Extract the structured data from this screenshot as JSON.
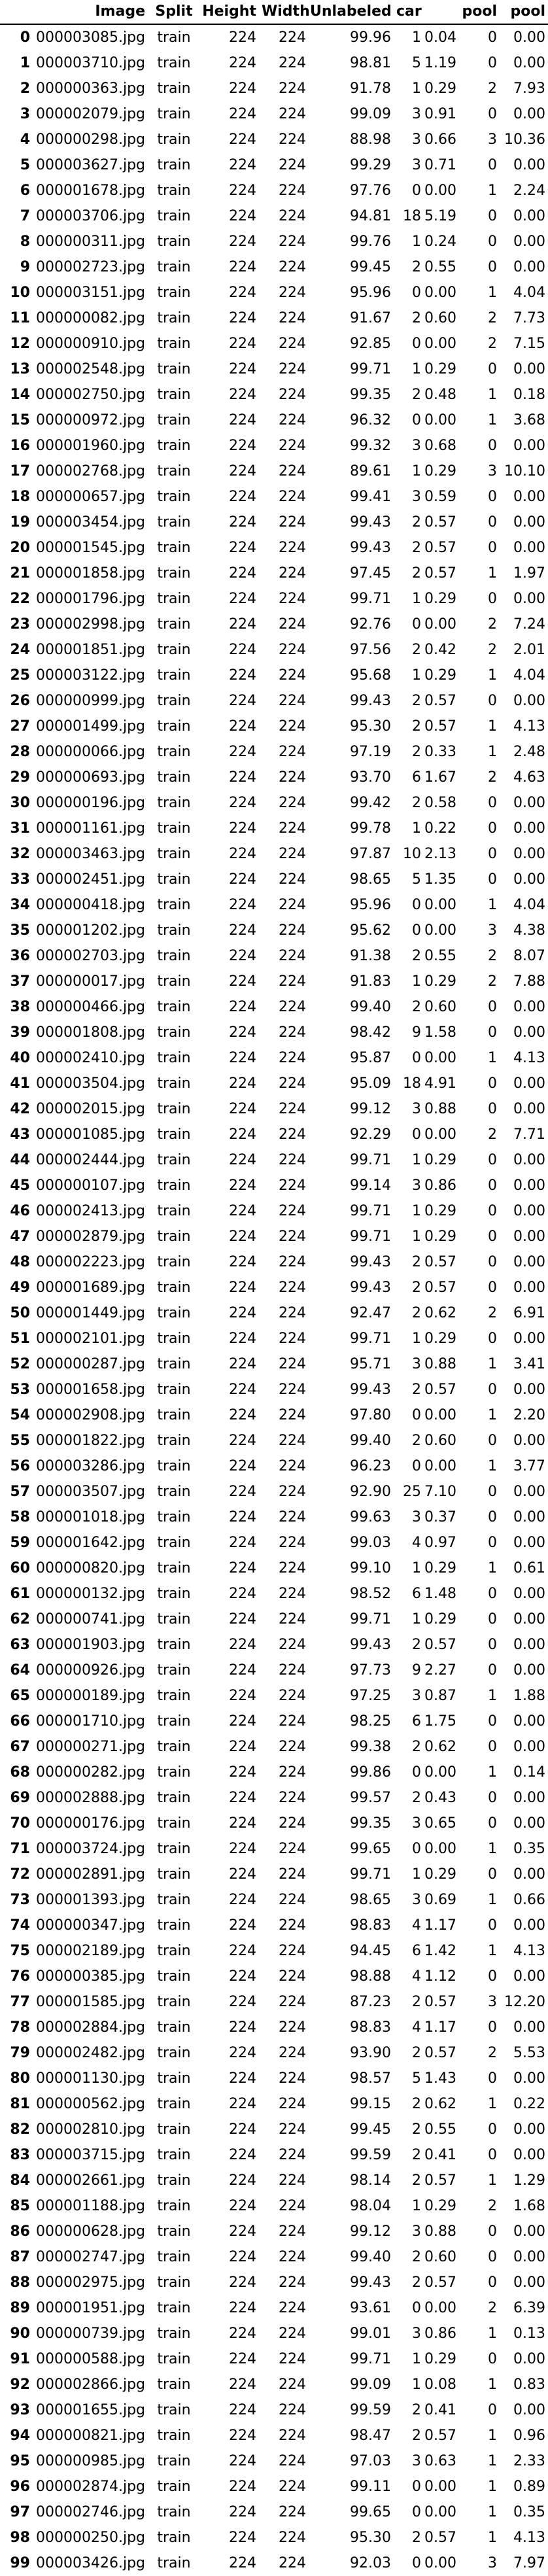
{
  "table": {
    "headers": {
      "index": "",
      "image": "Image",
      "split": "Split",
      "height": "Height",
      "width": "Width",
      "unlabeled": "Unlabeled",
      "car_count": "car",
      "car_pct": "",
      "pool_count": "pool",
      "pool_pct": "pool"
    },
    "rows": [
      [
        "0",
        "000003085.jpg",
        "train",
        "224",
        "224",
        "99.96",
        "1",
        "0.04",
        "0",
        "0.00"
      ],
      [
        "1",
        "000003710.jpg",
        "train",
        "224",
        "224",
        "98.81",
        "5",
        "1.19",
        "0",
        "0.00"
      ],
      [
        "2",
        "000000363.jpg",
        "train",
        "224",
        "224",
        "91.78",
        "1",
        "0.29",
        "2",
        "7.93"
      ],
      [
        "3",
        "000002079.jpg",
        "train",
        "224",
        "224",
        "99.09",
        "3",
        "0.91",
        "0",
        "0.00"
      ],
      [
        "4",
        "000000298.jpg",
        "train",
        "224",
        "224",
        "88.98",
        "3",
        "0.66",
        "3",
        "10.36"
      ],
      [
        "5",
        "000003627.jpg",
        "train",
        "224",
        "224",
        "99.29",
        "3",
        "0.71",
        "0",
        "0.00"
      ],
      [
        "6",
        "000001678.jpg",
        "train",
        "224",
        "224",
        "97.76",
        "0",
        "0.00",
        "1",
        "2.24"
      ],
      [
        "7",
        "000003706.jpg",
        "train",
        "224",
        "224",
        "94.81",
        "18",
        "5.19",
        "0",
        "0.00"
      ],
      [
        "8",
        "000000311.jpg",
        "train",
        "224",
        "224",
        "99.76",
        "1",
        "0.24",
        "0",
        "0.00"
      ],
      [
        "9",
        "000002723.jpg",
        "train",
        "224",
        "224",
        "99.45",
        "2",
        "0.55",
        "0",
        "0.00"
      ],
      [
        "10",
        "000003151.jpg",
        "train",
        "224",
        "224",
        "95.96",
        "0",
        "0.00",
        "1",
        "4.04"
      ],
      [
        "11",
        "000000082.jpg",
        "train",
        "224",
        "224",
        "91.67",
        "2",
        "0.60",
        "2",
        "7.73"
      ],
      [
        "12",
        "000000910.jpg",
        "train",
        "224",
        "224",
        "92.85",
        "0",
        "0.00",
        "2",
        "7.15"
      ],
      [
        "13",
        "000002548.jpg",
        "train",
        "224",
        "224",
        "99.71",
        "1",
        "0.29",
        "0",
        "0.00"
      ],
      [
        "14",
        "000002750.jpg",
        "train",
        "224",
        "224",
        "99.35",
        "2",
        "0.48",
        "1",
        "0.18"
      ],
      [
        "15",
        "000000972.jpg",
        "train",
        "224",
        "224",
        "96.32",
        "0",
        "0.00",
        "1",
        "3.68"
      ],
      [
        "16",
        "000001960.jpg",
        "train",
        "224",
        "224",
        "99.32",
        "3",
        "0.68",
        "0",
        "0.00"
      ],
      [
        "17",
        "000002768.jpg",
        "train",
        "224",
        "224",
        "89.61",
        "1",
        "0.29",
        "3",
        "10.10"
      ],
      [
        "18",
        "000000657.jpg",
        "train",
        "224",
        "224",
        "99.41",
        "3",
        "0.59",
        "0",
        "0.00"
      ],
      [
        "19",
        "000003454.jpg",
        "train",
        "224",
        "224",
        "99.43",
        "2",
        "0.57",
        "0",
        "0.00"
      ],
      [
        "20",
        "000001545.jpg",
        "train",
        "224",
        "224",
        "99.43",
        "2",
        "0.57",
        "0",
        "0.00"
      ],
      [
        "21",
        "000001858.jpg",
        "train",
        "224",
        "224",
        "97.45",
        "2",
        "0.57",
        "1",
        "1.97"
      ],
      [
        "22",
        "000001796.jpg",
        "train",
        "224",
        "224",
        "99.71",
        "1",
        "0.29",
        "0",
        "0.00"
      ],
      [
        "23",
        "000002998.jpg",
        "train",
        "224",
        "224",
        "92.76",
        "0",
        "0.00",
        "2",
        "7.24"
      ],
      [
        "24",
        "000001851.jpg",
        "train",
        "224",
        "224",
        "97.56",
        "2",
        "0.42",
        "2",
        "2.01"
      ],
      [
        "25",
        "000003122.jpg",
        "train",
        "224",
        "224",
        "95.68",
        "1",
        "0.29",
        "1",
        "4.04"
      ],
      [
        "26",
        "000000999.jpg",
        "train",
        "224",
        "224",
        "99.43",
        "2",
        "0.57",
        "0",
        "0.00"
      ],
      [
        "27",
        "000001499.jpg",
        "train",
        "224",
        "224",
        "95.30",
        "2",
        "0.57",
        "1",
        "4.13"
      ],
      [
        "28",
        "000000066.jpg",
        "train",
        "224",
        "224",
        "97.19",
        "2",
        "0.33",
        "1",
        "2.48"
      ],
      [
        "29",
        "000000693.jpg",
        "train",
        "224",
        "224",
        "93.70",
        "6",
        "1.67",
        "2",
        "4.63"
      ],
      [
        "30",
        "000000196.jpg",
        "train",
        "224",
        "224",
        "99.42",
        "2",
        "0.58",
        "0",
        "0.00"
      ],
      [
        "31",
        "000001161.jpg",
        "train",
        "224",
        "224",
        "99.78",
        "1",
        "0.22",
        "0",
        "0.00"
      ],
      [
        "32",
        "000003463.jpg",
        "train",
        "224",
        "224",
        "97.87",
        "10",
        "2.13",
        "0",
        "0.00"
      ],
      [
        "33",
        "000002451.jpg",
        "train",
        "224",
        "224",
        "98.65",
        "5",
        "1.35",
        "0",
        "0.00"
      ],
      [
        "34",
        "000000418.jpg",
        "train",
        "224",
        "224",
        "95.96",
        "0",
        "0.00",
        "1",
        "4.04"
      ],
      [
        "35",
        "000001202.jpg",
        "train",
        "224",
        "224",
        "95.62",
        "0",
        "0.00",
        "3",
        "4.38"
      ],
      [
        "36",
        "000002703.jpg",
        "train",
        "224",
        "224",
        "91.38",
        "2",
        "0.55",
        "2",
        "8.07"
      ],
      [
        "37",
        "000000017.jpg",
        "train",
        "224",
        "224",
        "91.83",
        "1",
        "0.29",
        "2",
        "7.88"
      ],
      [
        "38",
        "000000466.jpg",
        "train",
        "224",
        "224",
        "99.40",
        "2",
        "0.60",
        "0",
        "0.00"
      ],
      [
        "39",
        "000001808.jpg",
        "train",
        "224",
        "224",
        "98.42",
        "9",
        "1.58",
        "0",
        "0.00"
      ],
      [
        "40",
        "000002410.jpg",
        "train",
        "224",
        "224",
        "95.87",
        "0",
        "0.00",
        "1",
        "4.13"
      ],
      [
        "41",
        "000003504.jpg",
        "train",
        "224",
        "224",
        "95.09",
        "18",
        "4.91",
        "0",
        "0.00"
      ],
      [
        "42",
        "000002015.jpg",
        "train",
        "224",
        "224",
        "99.12",
        "3",
        "0.88",
        "0",
        "0.00"
      ],
      [
        "43",
        "000001085.jpg",
        "train",
        "224",
        "224",
        "92.29",
        "0",
        "0.00",
        "2",
        "7.71"
      ],
      [
        "44",
        "000002444.jpg",
        "train",
        "224",
        "224",
        "99.71",
        "1",
        "0.29",
        "0",
        "0.00"
      ],
      [
        "45",
        "000000107.jpg",
        "train",
        "224",
        "224",
        "99.14",
        "3",
        "0.86",
        "0",
        "0.00"
      ],
      [
        "46",
        "000002413.jpg",
        "train",
        "224",
        "224",
        "99.71",
        "1",
        "0.29",
        "0",
        "0.00"
      ],
      [
        "47",
        "000002879.jpg",
        "train",
        "224",
        "224",
        "99.71",
        "1",
        "0.29",
        "0",
        "0.00"
      ],
      [
        "48",
        "000002223.jpg",
        "train",
        "224",
        "224",
        "99.43",
        "2",
        "0.57",
        "0",
        "0.00"
      ],
      [
        "49",
        "000001689.jpg",
        "train",
        "224",
        "224",
        "99.43",
        "2",
        "0.57",
        "0",
        "0.00"
      ],
      [
        "50",
        "000001449.jpg",
        "train",
        "224",
        "224",
        "92.47",
        "2",
        "0.62",
        "2",
        "6.91"
      ],
      [
        "51",
        "000002101.jpg",
        "train",
        "224",
        "224",
        "99.71",
        "1",
        "0.29",
        "0",
        "0.00"
      ],
      [
        "52",
        "000000287.jpg",
        "train",
        "224",
        "224",
        "95.71",
        "3",
        "0.88",
        "1",
        "3.41"
      ],
      [
        "53",
        "000001658.jpg",
        "train",
        "224",
        "224",
        "99.43",
        "2",
        "0.57",
        "0",
        "0.00"
      ],
      [
        "54",
        "000002908.jpg",
        "train",
        "224",
        "224",
        "97.80",
        "0",
        "0.00",
        "1",
        "2.20"
      ],
      [
        "55",
        "000001822.jpg",
        "train",
        "224",
        "224",
        "99.40",
        "2",
        "0.60",
        "0",
        "0.00"
      ],
      [
        "56",
        "000003286.jpg",
        "train",
        "224",
        "224",
        "96.23",
        "0",
        "0.00",
        "1",
        "3.77"
      ],
      [
        "57",
        "000003507.jpg",
        "train",
        "224",
        "224",
        "92.90",
        "25",
        "7.10",
        "0",
        "0.00"
      ],
      [
        "58",
        "000001018.jpg",
        "train",
        "224",
        "224",
        "99.63",
        "3",
        "0.37",
        "0",
        "0.00"
      ],
      [
        "59",
        "000001642.jpg",
        "train",
        "224",
        "224",
        "99.03",
        "4",
        "0.97",
        "0",
        "0.00"
      ],
      [
        "60",
        "000000820.jpg",
        "train",
        "224",
        "224",
        "99.10",
        "1",
        "0.29",
        "1",
        "0.61"
      ],
      [
        "61",
        "000000132.jpg",
        "train",
        "224",
        "224",
        "98.52",
        "6",
        "1.48",
        "0",
        "0.00"
      ],
      [
        "62",
        "000000741.jpg",
        "train",
        "224",
        "224",
        "99.71",
        "1",
        "0.29",
        "0",
        "0.00"
      ],
      [
        "63",
        "000001903.jpg",
        "train",
        "224",
        "224",
        "99.43",
        "2",
        "0.57",
        "0",
        "0.00"
      ],
      [
        "64",
        "000000926.jpg",
        "train",
        "224",
        "224",
        "97.73",
        "9",
        "2.27",
        "0",
        "0.00"
      ],
      [
        "65",
        "000000189.jpg",
        "train",
        "224",
        "224",
        "97.25",
        "3",
        "0.87",
        "1",
        "1.88"
      ],
      [
        "66",
        "000001710.jpg",
        "train",
        "224",
        "224",
        "98.25",
        "6",
        "1.75",
        "0",
        "0.00"
      ],
      [
        "67",
        "000000271.jpg",
        "train",
        "224",
        "224",
        "99.38",
        "2",
        "0.62",
        "0",
        "0.00"
      ],
      [
        "68",
        "000000282.jpg",
        "train",
        "224",
        "224",
        "99.86",
        "0",
        "0.00",
        "1",
        "0.14"
      ],
      [
        "69",
        "000002888.jpg",
        "train",
        "224",
        "224",
        "99.57",
        "2",
        "0.43",
        "0",
        "0.00"
      ],
      [
        "70",
        "000000176.jpg",
        "train",
        "224",
        "224",
        "99.35",
        "3",
        "0.65",
        "0",
        "0.00"
      ],
      [
        "71",
        "000003724.jpg",
        "train",
        "224",
        "224",
        "99.65",
        "0",
        "0.00",
        "1",
        "0.35"
      ],
      [
        "72",
        "000002891.jpg",
        "train",
        "224",
        "224",
        "99.71",
        "1",
        "0.29",
        "0",
        "0.00"
      ],
      [
        "73",
        "000001393.jpg",
        "train",
        "224",
        "224",
        "98.65",
        "3",
        "0.69",
        "1",
        "0.66"
      ],
      [
        "74",
        "000000347.jpg",
        "train",
        "224",
        "224",
        "98.83",
        "4",
        "1.17",
        "0",
        "0.00"
      ],
      [
        "75",
        "000002189.jpg",
        "train",
        "224",
        "224",
        "94.45",
        "6",
        "1.42",
        "1",
        "4.13"
      ],
      [
        "76",
        "000000385.jpg",
        "train",
        "224",
        "224",
        "98.88",
        "4",
        "1.12",
        "0",
        "0.00"
      ],
      [
        "77",
        "000001585.jpg",
        "train",
        "224",
        "224",
        "87.23",
        "2",
        "0.57",
        "3",
        "12.20"
      ],
      [
        "78",
        "000002884.jpg",
        "train",
        "224",
        "224",
        "98.83",
        "4",
        "1.17",
        "0",
        "0.00"
      ],
      [
        "79",
        "000002482.jpg",
        "train",
        "224",
        "224",
        "93.90",
        "2",
        "0.57",
        "2",
        "5.53"
      ],
      [
        "80",
        "000001130.jpg",
        "train",
        "224",
        "224",
        "98.57",
        "5",
        "1.43",
        "0",
        "0.00"
      ],
      [
        "81",
        "000000562.jpg",
        "train",
        "224",
        "224",
        "99.15",
        "2",
        "0.62",
        "1",
        "0.22"
      ],
      [
        "82",
        "000002810.jpg",
        "train",
        "224",
        "224",
        "99.45",
        "2",
        "0.55",
        "0",
        "0.00"
      ],
      [
        "83",
        "000003715.jpg",
        "train",
        "224",
        "224",
        "99.59",
        "2",
        "0.41",
        "0",
        "0.00"
      ],
      [
        "84",
        "000002661.jpg",
        "train",
        "224",
        "224",
        "98.14",
        "2",
        "0.57",
        "1",
        "1.29"
      ],
      [
        "85",
        "000001188.jpg",
        "train",
        "224",
        "224",
        "98.04",
        "1",
        "0.29",
        "2",
        "1.68"
      ],
      [
        "86",
        "000000628.jpg",
        "train",
        "224",
        "224",
        "99.12",
        "3",
        "0.88",
        "0",
        "0.00"
      ],
      [
        "87",
        "000002747.jpg",
        "train",
        "224",
        "224",
        "99.40",
        "2",
        "0.60",
        "0",
        "0.00"
      ],
      [
        "88",
        "000002975.jpg",
        "train",
        "224",
        "224",
        "99.43",
        "2",
        "0.57",
        "0",
        "0.00"
      ],
      [
        "89",
        "000001951.jpg",
        "train",
        "224",
        "224",
        "93.61",
        "0",
        "0.00",
        "2",
        "6.39"
      ],
      [
        "90",
        "000000739.jpg",
        "train",
        "224",
        "224",
        "99.01",
        "3",
        "0.86",
        "1",
        "0.13"
      ],
      [
        "91",
        "000000588.jpg",
        "train",
        "224",
        "224",
        "99.71",
        "1",
        "0.29",
        "0",
        "0.00"
      ],
      [
        "92",
        "000002866.jpg",
        "train",
        "224",
        "224",
        "99.09",
        "1",
        "0.08",
        "1",
        "0.83"
      ],
      [
        "93",
        "000001655.jpg",
        "train",
        "224",
        "224",
        "99.59",
        "2",
        "0.41",
        "0",
        "0.00"
      ],
      [
        "94",
        "000000821.jpg",
        "train",
        "224",
        "224",
        "98.47",
        "2",
        "0.57",
        "1",
        "0.96"
      ],
      [
        "95",
        "000000985.jpg",
        "train",
        "224",
        "224",
        "97.03",
        "3",
        "0.63",
        "1",
        "2.33"
      ],
      [
        "96",
        "000002874.jpg",
        "train",
        "224",
        "224",
        "99.11",
        "0",
        "0.00",
        "1",
        "0.89"
      ],
      [
        "97",
        "000002746.jpg",
        "train",
        "224",
        "224",
        "99.65",
        "0",
        "0.00",
        "1",
        "0.35"
      ],
      [
        "98",
        "000000250.jpg",
        "train",
        "224",
        "224",
        "95.30",
        "2",
        "0.57",
        "1",
        "4.13"
      ],
      [
        "99",
        "000003426.jpg",
        "train",
        "224",
        "224",
        "92.03",
        "0",
        "0.00",
        "3",
        "7.97"
      ]
    ]
  }
}
